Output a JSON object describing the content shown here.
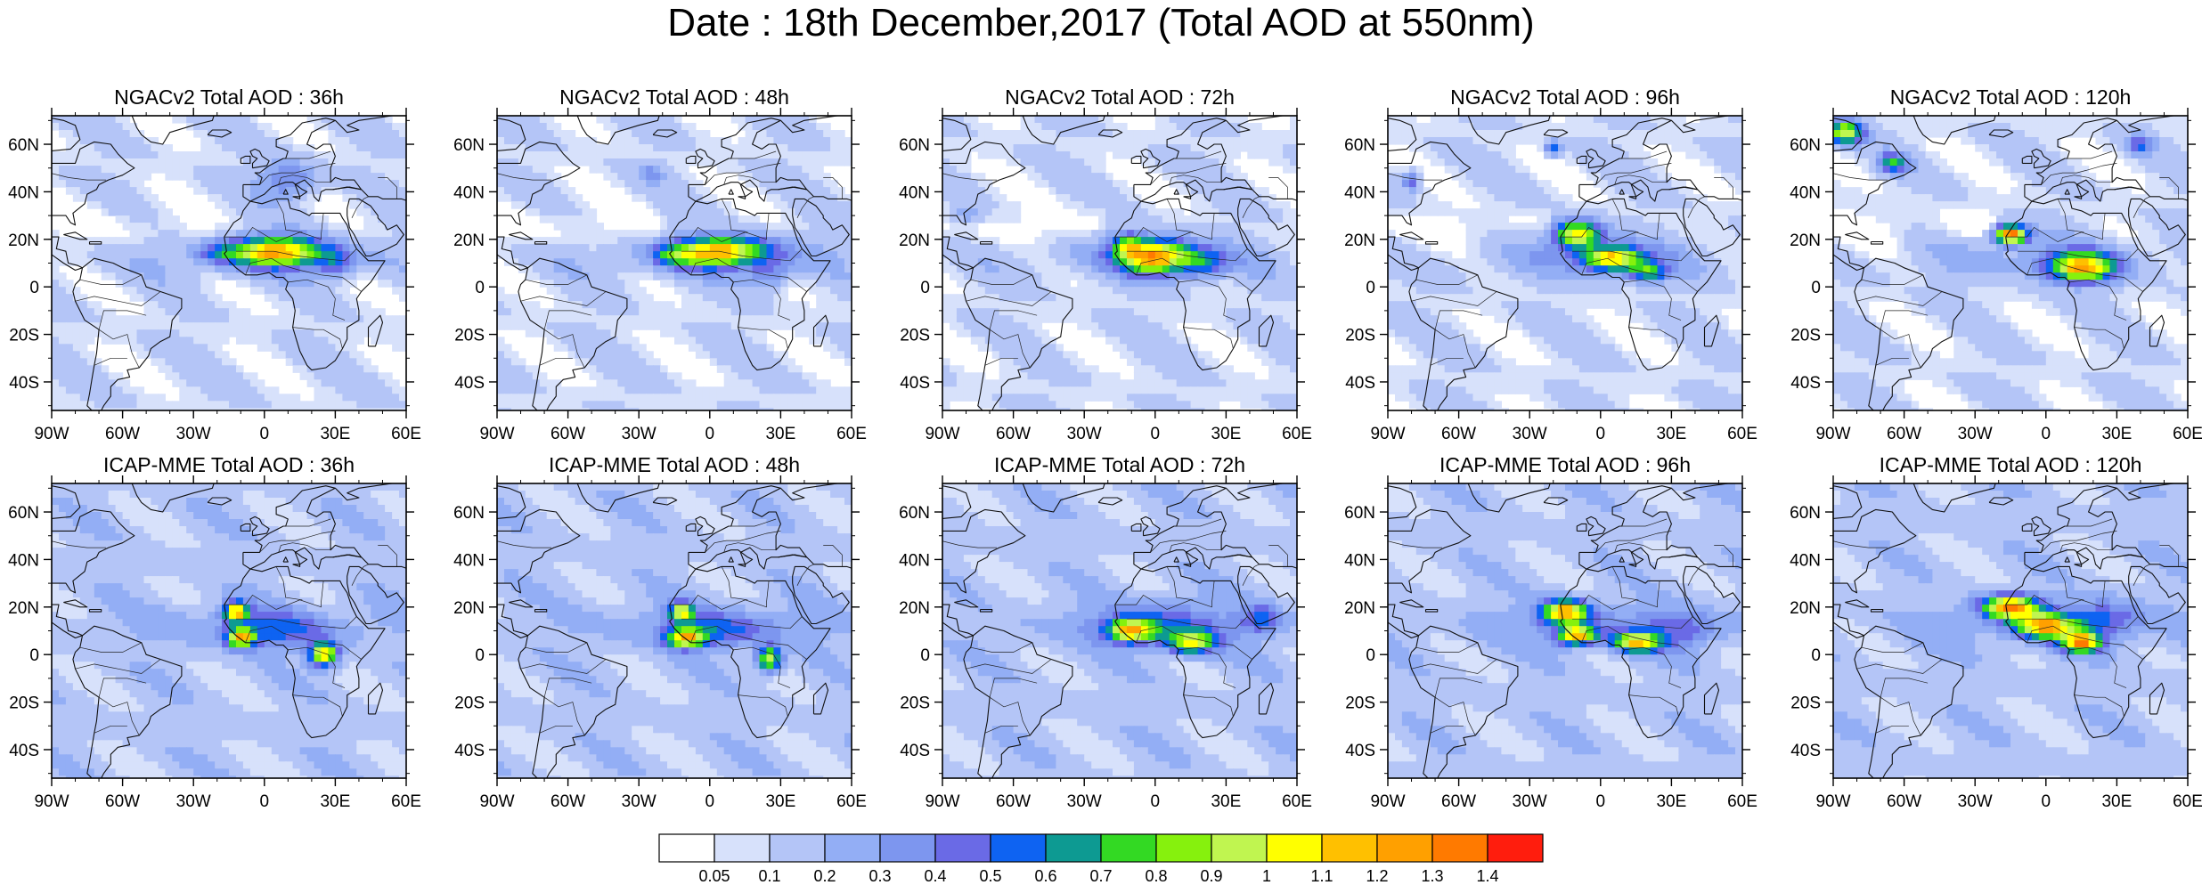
{
  "figure": {
    "title": "Date : 18th December,2017 (Total AOD at 550nm)"
  },
  "map_axes": {
    "lon_ticks": [
      "90W",
      "60W",
      "30W",
      "0",
      "30E",
      "60E"
    ],
    "lon_values": [
      -90,
      -60,
      -30,
      0,
      30,
      60
    ],
    "lat_ticks": [
      "60N",
      "40N",
      "20N",
      "0",
      "20S",
      "40S"
    ],
    "lat_values": [
      60,
      40,
      20,
      0,
      -20,
      -40
    ],
    "lon_range": [
      -90,
      60
    ],
    "lat_range": [
      -52,
      72
    ]
  },
  "panels": [
    {
      "title": "NGACv2 Total AOD : 36h",
      "model": "NGACv2",
      "lead": "36h"
    },
    {
      "title": "NGACv2 Total AOD : 48h",
      "model": "NGACv2",
      "lead": "48h"
    },
    {
      "title": "NGACv2 Total AOD : 72h",
      "model": "NGACv2",
      "lead": "72h"
    },
    {
      "title": "NGACv2 Total AOD : 96h",
      "model": "NGACv2",
      "lead": "96h"
    },
    {
      "title": "NGACv2 Total AOD : 120h",
      "model": "NGACv2",
      "lead": "120h"
    },
    {
      "title": "ICAP-MME Total AOD : 36h",
      "model": "ICAP-MME",
      "lead": "36h"
    },
    {
      "title": "ICAP-MME Total AOD : 48h",
      "model": "ICAP-MME",
      "lead": "48h"
    },
    {
      "title": "ICAP-MME Total AOD : 72h",
      "model": "ICAP-MME",
      "lead": "72h"
    },
    {
      "title": "ICAP-MME Total AOD : 96h",
      "model": "ICAP-MME",
      "lead": "96h"
    },
    {
      "title": "ICAP-MME Total AOD : 120h",
      "model": "ICAP-MME",
      "lead": "120h"
    }
  ],
  "colorbar": {
    "labels": [
      "0.05",
      "0.1",
      "0.2",
      "0.3",
      "0.4",
      "0.5",
      "0.6",
      "0.7",
      "0.8",
      "0.9",
      "1",
      "1.1",
      "1.2",
      "1.3",
      "1.4"
    ],
    "colors": [
      "#ffffff",
      "#d7e1fb",
      "#b4c5f7",
      "#93aef5",
      "#7d96ef",
      "#6a6ae6",
      "#0e63f2",
      "#0d9a92",
      "#33d923",
      "#86f10d",
      "#c0f550",
      "#ffff00",
      "#ffc000",
      "#ffa000",
      "#ff7a00",
      "#ff1d0d"
    ]
  }
}
